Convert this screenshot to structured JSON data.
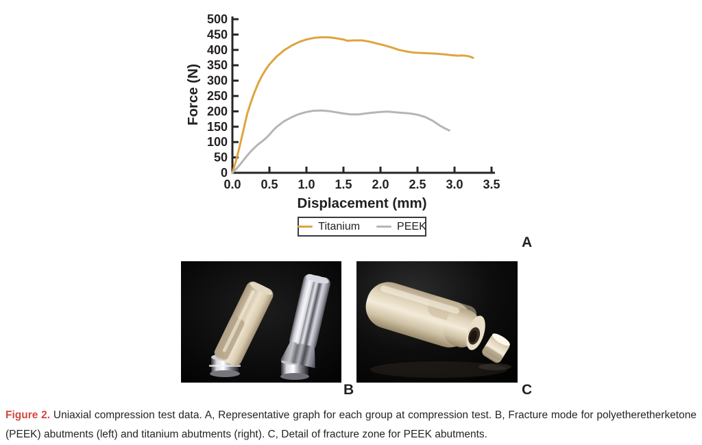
{
  "figure": {
    "panel_a_label": "A",
    "panel_b_label": "B",
    "panel_c_label": "C"
  },
  "chart_data": {
    "type": "line",
    "title": "",
    "xlabel": "Displacement (mm)",
    "ylabel": "Force (N)",
    "xlim": [
      0,
      3.5
    ],
    "ylim": [
      0,
      500
    ],
    "grid": false,
    "legend_position": "below",
    "axis_color": "#262626",
    "x_ticks": [
      0,
      0.5,
      1,
      1.5,
      2,
      2.5,
      3,
      3.5
    ],
    "x_tick_labels": [
      "0.0",
      "0.5",
      "1.0",
      "1.5",
      "2.0",
      "2.5",
      "3.0",
      "3.5"
    ],
    "y_ticks": [
      0,
      50,
      100,
      150,
      200,
      250,
      300,
      350,
      400,
      450,
      500
    ],
    "y_tick_labels": [
      "0",
      "50",
      "100",
      "150",
      "200",
      "250",
      "300",
      "350",
      "400",
      "450",
      "500"
    ],
    "series": [
      {
        "name": "Titanium",
        "color": "#DFA43D",
        "points": [
          [
            0,
            0
          ],
          [
            0.05,
            40
          ],
          [
            0.1,
            88
          ],
          [
            0.15,
            140
          ],
          [
            0.2,
            192
          ],
          [
            0.25,
            230
          ],
          [
            0.3,
            263
          ],
          [
            0.35,
            292
          ],
          [
            0.4,
            316
          ],
          [
            0.45,
            336
          ],
          [
            0.5,
            353
          ],
          [
            0.6,
            379
          ],
          [
            0.7,
            399
          ],
          [
            0.8,
            414
          ],
          [
            0.9,
            426
          ],
          [
            1.0,
            434
          ],
          [
            1.1,
            439
          ],
          [
            1.2,
            441
          ],
          [
            1.3,
            441
          ],
          [
            1.4,
            438
          ],
          [
            1.5,
            434
          ],
          [
            1.55,
            430
          ],
          [
            1.65,
            431
          ],
          [
            1.75,
            431
          ],
          [
            1.85,
            427
          ],
          [
            1.95,
            421
          ],
          [
            2.05,
            415
          ],
          [
            2.15,
            408
          ],
          [
            2.25,
            400
          ],
          [
            2.35,
            395
          ],
          [
            2.45,
            391
          ],
          [
            2.55,
            390
          ],
          [
            2.65,
            389
          ],
          [
            2.75,
            388
          ],
          [
            2.85,
            386
          ],
          [
            2.95,
            383
          ],
          [
            3.05,
            381
          ],
          [
            3.1,
            382
          ],
          [
            3.15,
            381
          ],
          [
            3.2,
            379
          ],
          [
            3.25,
            374
          ]
        ]
      },
      {
        "name": "PEEK",
        "color": "#B5B5B5",
        "points": [
          [
            0,
            0
          ],
          [
            0.05,
            12
          ],
          [
            0.1,
            26
          ],
          [
            0.15,
            41
          ],
          [
            0.2,
            56
          ],
          [
            0.25,
            70
          ],
          [
            0.3,
            82
          ],
          [
            0.35,
            93
          ],
          [
            0.4,
            102
          ],
          [
            0.45,
            112
          ],
          [
            0.5,
            124
          ],
          [
            0.55,
            138
          ],
          [
            0.6,
            150
          ],
          [
            0.7,
            168
          ],
          [
            0.8,
            181
          ],
          [
            0.9,
            191
          ],
          [
            1.0,
            198
          ],
          [
            1.1,
            202
          ],
          [
            1.2,
            203
          ],
          [
            1.3,
            201
          ],
          [
            1.4,
            197
          ],
          [
            1.5,
            193
          ],
          [
            1.6,
            190
          ],
          [
            1.7,
            190
          ],
          [
            1.8,
            193
          ],
          [
            1.9,
            196
          ],
          [
            2.0,
            198
          ],
          [
            2.1,
            199
          ],
          [
            2.2,
            197
          ],
          [
            2.3,
            195
          ],
          [
            2.4,
            193
          ],
          [
            2.5,
            189
          ],
          [
            2.6,
            182
          ],
          [
            2.7,
            170
          ],
          [
            2.75,
            162
          ],
          [
            2.8,
            154
          ],
          [
            2.85,
            147
          ],
          [
            2.9,
            141
          ],
          [
            2.93,
            138
          ]
        ]
      }
    ]
  },
  "caption": {
    "label": "Figure 2.",
    "label_color": "#D5473C",
    "lines": [
      "Uniaxial compression test data. A, Representative graph for each group at compression test. B, Fracture mode for polyetheretherketone",
      "(PEEK) abutments (left) and titanium abutments (right). C, Detail of fracture zone for PEEK abutments."
    ]
  }
}
